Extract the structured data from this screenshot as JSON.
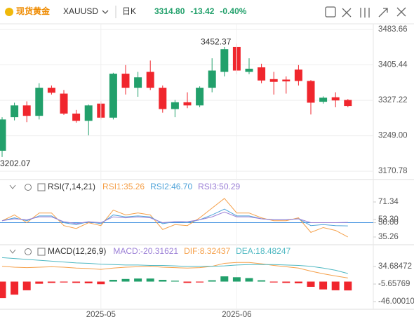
{
  "header": {
    "name": "现货黄金",
    "symbol": "XAUUSD",
    "period": "日K",
    "price": "3314.80",
    "change": "-13.42",
    "percent": "-0.40%",
    "color": "#22a06b"
  },
  "chart_data": [
    {
      "type": "candlestick",
      "categories": [
        null,
        null,
        null,
        null,
        null,
        null,
        null,
        null,
        "2025-05",
        null,
        null,
        null,
        null,
        null,
        null,
        null,
        null,
        null,
        null,
        "2025-06",
        null,
        null,
        null,
        null,
        null,
        null,
        null,
        null,
        null
      ],
      "open": [
        3216,
        3290,
        3316,
        3293,
        3355,
        3342,
        3298,
        3282,
        3320,
        3289,
        3386,
        3355,
        3390,
        3355,
        3308,
        3323,
        3316,
        3355,
        3390,
        3445,
        3390,
        3400,
        3374,
        3373,
        3395,
        3370,
        3324,
        3334,
        3328
      ],
      "high": [
        3290,
        3322,
        3325,
        3365,
        3360,
        3350,
        3306,
        3318,
        3325,
        3388,
        3405,
        3390,
        3415,
        3360,
        3328,
        3345,
        3358,
        3420,
        3445,
        3452.37,
        3420,
        3408,
        3390,
        3380,
        3405,
        3372,
        3336,
        3345,
        3330
      ],
      "low": [
        3202.07,
        3283,
        3279,
        3285,
        3340,
        3295,
        3278,
        3250,
        3285,
        3285,
        3340,
        3335,
        3350,
        3300,
        3290,
        3310,
        3312,
        3345,
        3380,
        3385,
        3385,
        3365,
        3340,
        3342,
        3360,
        3296,
        3320,
        3312,
        3312
      ],
      "close": [
        3285,
        3316,
        3293,
        3355,
        3344,
        3298,
        3282,
        3316,
        3289,
        3386,
        3355,
        3378,
        3355,
        3308,
        3323,
        3316,
        3355,
        3393,
        3440,
        3393,
        3397,
        3371,
        3368,
        3369,
        3370,
        3322,
        3333,
        3327,
        3314.8
      ],
      "up_color": "#22a06b",
      "down_color": "#f0262d",
      "ylim": [
        3154,
        3496
      ],
      "yticks": [
        3483.66,
        3405.44,
        3327.22,
        {
          "value": 3249,
          "label": "3249.00"
        },
        3170.78
      ],
      "grid": true,
      "high_label": 3452.37,
      "low_label": 3202.07
    },
    {
      "type": "line",
      "title": "RSI(7,14,21)",
      "series": [
        {
          "name": "RSI1:35.26",
          "color": "#f5a04a",
          "values": [
            52,
            58,
            50,
            60,
            60,
            47,
            44,
            50,
            47,
            63,
            58,
            60,
            58,
            43,
            48,
            47,
            55,
            65,
            75,
            60,
            60,
            55,
            52,
            52,
            55,
            40,
            45,
            42,
            35.26
          ]
        },
        {
          "name": "RSI2:46.70",
          "color": "#4fa3d9",
          "values": [
            52,
            55,
            52,
            57,
            57,
            50,
            48,
            51,
            49,
            58,
            56,
            57,
            56,
            49,
            51,
            50,
            53,
            58,
            64,
            57,
            57,
            54,
            53,
            53,
            54,
            47,
            48,
            47,
            46.7
          ]
        },
        {
          "name": "RSI3:50.29",
          "color": "#9b7fd6",
          "values": [
            52,
            54,
            53,
            56,
            56,
            51,
            49,
            51,
            50,
            56,
            55,
            56,
            55,
            50,
            51,
            51,
            53,
            56,
            61,
            56,
            56,
            54,
            53,
            53,
            54,
            50,
            50,
            50,
            50.29
          ]
        }
      ],
      "ylim": [
        28,
        93
      ],
      "yticks": [
        71.34,
        {
          "value": 53.3,
          "label": "53.30"
        },
        {
          "value": 50,
          "label": "50.00"
        },
        35.26
      ],
      "baseline": 50,
      "baseline_color": "#3d8fe0"
    },
    {
      "type": "macd",
      "title": "MACD(12,26,9)",
      "histogram": {
        "name": "MACD:-20.31621",
        "pos_color": "#22a06b",
        "neg_color": "#f0262d",
        "values": [
          -38,
          -30,
          -20,
          -5,
          -3,
          -2,
          -3,
          -4,
          -6,
          4,
          6,
          7,
          7,
          4,
          2,
          -3,
          -2,
          3,
          12,
          10,
          8,
          3,
          -2,
          -3,
          -4,
          -12,
          -18,
          -20,
          -20.31621
        ]
      },
      "series": [
        {
          "name": "DIF:8.32437",
          "color": "#f5a04a",
          "values": [
            35,
            33,
            32,
            33,
            34,
            33,
            31,
            30,
            28,
            31,
            33,
            34,
            35,
            33,
            32,
            31,
            32,
            35,
            42,
            44,
            44,
            41,
            37,
            34,
            31,
            24,
            18,
            13,
            8.32437
          ]
        },
        {
          "name": "DEA:18.48247",
          "color": "#4fb8c2",
          "values": [
            55,
            53,
            51,
            49,
            47,
            45,
            43,
            42,
            40,
            39,
            38,
            38,
            37,
            37,
            36,
            35,
            35,
            35,
            36,
            38,
            39,
            39,
            39,
            38,
            37,
            35,
            31,
            26,
            18.48247
          ]
        }
      ],
      "ylim": [
        -62,
        83
      ],
      "yticks": [
        34.68472,
        -5.65769,
        {
          "value": -46.0001,
          "label": "-46.00010"
        }
      ]
    }
  ]
}
